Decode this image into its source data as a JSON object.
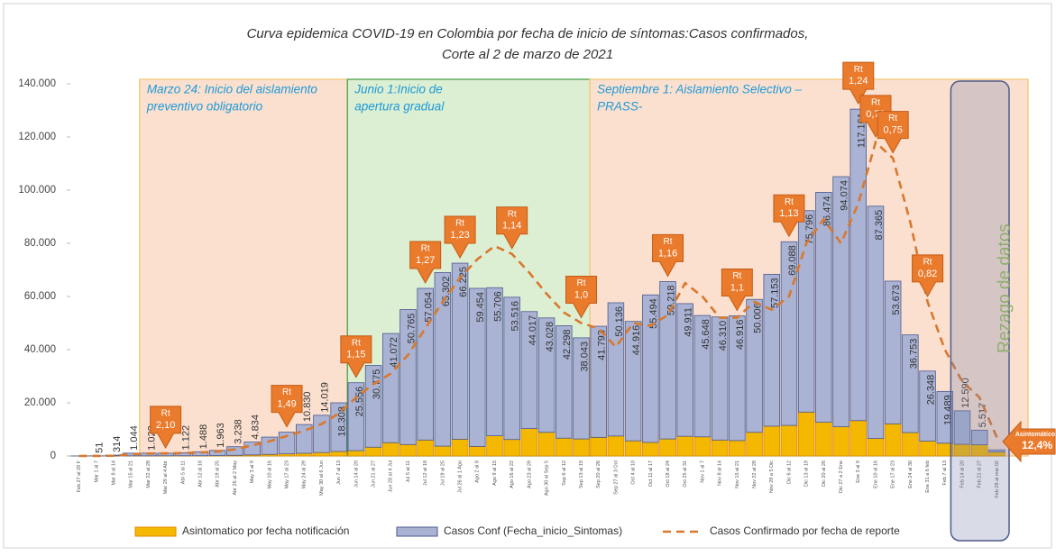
{
  "chart_data": {
    "type": "stacked-bar-line",
    "title": "Curva epidemica COVID-19 en Colombia  por fecha de inicio de síntomas:Casos confirmados,",
    "subtitle": "Corte al 2 de marzo de 2021",
    "categories": [
      "Feb 27 al 29 F",
      "Mar 1 al 7",
      "Mar 8 al 14",
      "Mar 15 al 21",
      "Mar 22 al 28",
      "Mar 29 al 4 Abr",
      "Abr 5 al 11",
      "Abr 12 al 18",
      "Abr 19 al 25",
      "Abr 26 al 2 May",
      "May 3 al 9",
      "May 10 al 16",
      "May 17 al 23",
      "May 24 al 29",
      "May 30 al 6 Jun",
      "Jun 7 al 13",
      "Jun 14 al 20",
      "Jun 21 al 27",
      "Jun 28 al 4 Jul",
      "Jul 5 al 11",
      "Jul 12 al 18",
      "Jul 19 al 25",
      "Jul 26 al 1 Ago",
      "Ago 2 al 8",
      "Ago 9 al 15",
      "Ago 16 al 22",
      "Ago 23 al 29",
      "Ago 30 al Sep 5",
      "Sep 6 al 12",
      "Sep 13 al 19",
      "Sep 20 al 26",
      "Sep 27 al 3 Oct",
      "Oct 4 al 10",
      "Oct 11 al 17",
      "Oct 18 al 24",
      "Oct 25 al 31",
      "Nov 1 al 7",
      "Nov 8 al 14",
      "Nov 15 al 21",
      "Nov 22 al 28",
      "Nov 29 a 5 Dic",
      "Dic 6 al 12",
      "Dic 13 al 19",
      "Dic 20 al 26",
      "Dic 27 a 2 Ene",
      "Ene 3 al 9",
      "Ene 10 al 16",
      "Ene 17 al 23",
      "Ene 24 al 30",
      "Ene 31 a 6 feb",
      "Feb 7 al 13",
      "Feb 14 al 20",
      "Feb 21 al 27",
      "Feb 28 al mar 02"
    ],
    "series": [
      {
        "name": "Asintomatico  por fecha notificación",
        "kind": "bar",
        "color": "#f5b800",
        "stroke": "#e08a00",
        "values": [
          0,
          0,
          10,
          30,
          50,
          60,
          80,
          100,
          150,
          250,
          400,
          600,
          800,
          1000,
          1300,
          1700,
          2000,
          3300,
          5000,
          4300,
          6000,
          3700,
          6300,
          3600,
          7600,
          6200,
          10300,
          8900,
          6700,
          6400,
          7000,
          7500,
          5700,
          5100,
          6400,
          7400,
          7200,
          6000,
          5800,
          8900,
          11200,
          11500,
          16500,
          12700,
          11000,
          13300,
          6600,
          12100,
          8800,
          5600,
          4800,
          4400,
          4200,
          1500
        ]
      },
      {
        "name": "Casos Conf (Fecha_inicio_Sintomas)",
        "kind": "bar",
        "color": "#aab3d3",
        "stroke": "#4d5a8c",
        "values": [
          3,
          51,
          314,
          1044,
          1023,
          984,
          1122,
          1488,
          1963,
          3238,
          4834,
          6500,
          8152,
          10830,
          14019,
          18308,
          25556,
          30775,
          41072,
          50765,
          57054,
          65302,
          66225,
          59454,
          55706,
          53516,
          44017,
          43028,
          42298,
          38043,
          41793,
          50136,
          44916,
          55494,
          59218,
          49911,
          45648,
          46310,
          46916,
          50006,
          57153,
          69088,
          75796,
          86474,
          94074,
          117161,
          87365,
          53673,
          36753,
          26348,
          19489,
          12590,
          5517,
          800
        ],
        "value_labels": [
          null,
          "51",
          "314",
          "1.044",
          "1.023",
          null,
          "1.122",
          "1.488",
          "1.963",
          "3.238",
          "4.834",
          null,
          null,
          "10.830",
          "14.019",
          "18.308",
          "25.556",
          "30.775",
          "41.072",
          "50.765",
          "57.054",
          "65.302",
          "66.225",
          "59.454",
          "55.706",
          "53.516",
          "44.017",
          "43.028",
          "42.298",
          "38.043",
          "41.793",
          "50.136",
          "44.916",
          "55.494",
          "59.218",
          "49.911",
          "45.648",
          "46.310",
          "46.916",
          "50.006",
          "57.153",
          "69.088",
          "75.796",
          "86.474",
          "94.074",
          "117.161",
          "87.365",
          "53.673",
          "36.753",
          "26.348",
          "19.489",
          "12.590",
          "5.517",
          null
        ]
      },
      {
        "name": "Casos Confirmado por fecha de reporte",
        "kind": "line",
        "color": "#d9782d",
        "values": [
          0,
          10,
          100,
          600,
          900,
          1000,
          1100,
          1300,
          1700,
          2500,
          4000,
          5500,
          7500,
          9500,
          12000,
          16000,
          22000,
          27000,
          31000,
          38000,
          48000,
          58000,
          67000,
          74000,
          79000,
          76000,
          69000,
          61000,
          54000,
          50000,
          48000,
          41000,
          50000,
          49000,
          53000,
          65000,
          60000,
          52000,
          52000,
          58000,
          55000,
          60000,
          80000,
          89000,
          80000,
          95000,
          118000,
          112000,
          88000,
          58000,
          40000,
          28000,
          22000,
          7000
        ]
      }
    ],
    "ylim": [
      0,
      140000
    ],
    "yticks": [
      0,
      {
        "value": 20000,
        "label": "20.000"
      },
      {
        "value": 40000,
        "label": "40.000"
      },
      {
        "value": 60000,
        "label": "60.000"
      },
      {
        "value": 80000,
        "label": "80.000"
      },
      {
        "value": 100000,
        "label": "100.000"
      },
      {
        "value": 120000,
        "label": "120.000"
      },
      {
        "value": 140000,
        "label": "140.000"
      }
    ],
    "grid": false,
    "regions": [
      {
        "lines": [
          "Marzo 24: Inicio del aislamiento",
          "preventivo obligatorio"
        ],
        "start": "Mar 22 al 28",
        "color": "#fbe0d0",
        "border": "#f2c46e"
      },
      {
        "lines": [
          "Junio 1:Inicio de",
          "apertura gradual"
        ],
        "start": "Jun 14 al 20",
        "color": "#dcefd3",
        "border": "#3f9b3f"
      },
      {
        "lines": [
          "Septiembre 1: Aislamiento Selectivo –",
          "PRASS-"
        ],
        "start": "Sep 20 al 26",
        "color": "#fbe0d0",
        "border": "#f2c46e"
      }
    ],
    "rt_callouts": [
      {
        "label": "Rt",
        "value": "2,10",
        "category": "Mar 29 al 4 Abr"
      },
      {
        "label": "Rt",
        "value": "1,49",
        "category": "May 17 al 23"
      },
      {
        "label": "Rt",
        "value": "1,15",
        "category": "Jun 14 al 20"
      },
      {
        "label": "Rt",
        "value": "1,27",
        "category": "Jul 12 al 18"
      },
      {
        "label": "Rt",
        "value": "1,23",
        "category": "Jul 26 al 1 Ago"
      },
      {
        "label": "Rt",
        "value": "1,14",
        "category": "Ago 16 al 22"
      },
      {
        "label": "Rt",
        "value": "1,0",
        "category": "Sep 13 al 19"
      },
      {
        "label": "Rt",
        "value": "1,16",
        "category": "Oct 18 al 24"
      },
      {
        "label": "Rt",
        "value": "1,1",
        "category": "Nov 15 al 21"
      },
      {
        "label": "Rt",
        "value": "1,13",
        "category": "Dic 6 al 12"
      },
      {
        "label": "Rt",
        "value": "1,24",
        "category": "Ene 3 al 9"
      },
      {
        "label": "Rt",
        "value": "0,79",
        "category": "Ene 10 al 16"
      },
      {
        "label": "Rt",
        "value": "0,75",
        "category": "Ene 17 al 23"
      },
      {
        "label": "Rt",
        "value": "0,82",
        "category": "Ene 31 a 6 feb"
      }
    ],
    "lag_box": {
      "text": "Rezago de datos",
      "start": "Feb 14 al 20"
    },
    "asymptomatic_note": {
      "label": "Asintomático",
      "value": "12,4%"
    }
  }
}
